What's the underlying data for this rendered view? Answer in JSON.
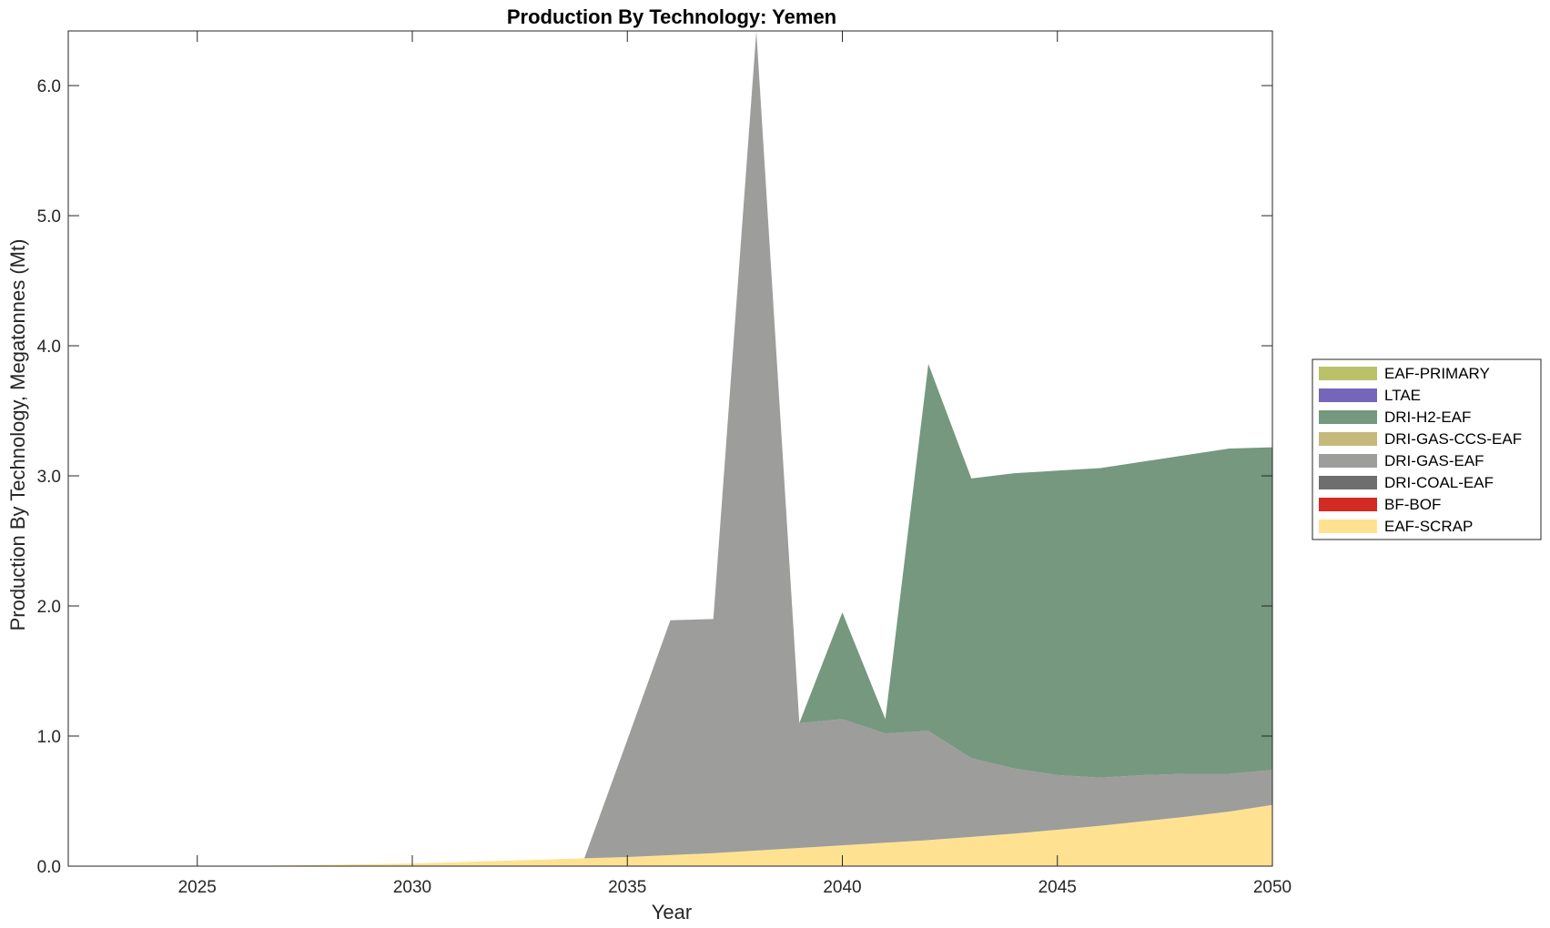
{
  "chart_data": {
    "type": "area",
    "title": "Production By Technology: Yemen",
    "xlabel": "Year",
    "ylabel": "Production By Technology, Megatonnes (Mt)",
    "xlim": [
      2022,
      2050
    ],
    "ylim": [
      0,
      6.42
    ],
    "xticks": [
      2025,
      2030,
      2035,
      2040,
      2045,
      2050
    ],
    "yticks": [
      0.0,
      1.0,
      2.0,
      3.0,
      4.0,
      5.0,
      6.0
    ],
    "ytick_labels": [
      "0.0",
      "1.0",
      "2.0",
      "3.0",
      "4.0",
      "5.0",
      "6.0"
    ],
    "grid": false,
    "legend_position": "right",
    "x": [
      2022,
      2023,
      2024,
      2025,
      2026,
      2027,
      2028,
      2029,
      2030,
      2031,
      2032,
      2033,
      2034,
      2035,
      2036,
      2037,
      2038,
      2039,
      2040,
      2041,
      2042,
      2043,
      2044,
      2045,
      2046,
      2047,
      2048,
      2049,
      2050
    ],
    "series": [
      {
        "name": "EAF-SCRAP",
        "color": "#FFE291",
        "values": [
          0.0,
          0.0,
          0.0,
          0.0,
          0.0,
          0.005,
          0.01,
          0.015,
          0.02,
          0.03,
          0.04,
          0.05,
          0.06,
          0.07,
          0.085,
          0.1,
          0.12,
          0.14,
          0.16,
          0.18,
          0.2,
          0.225,
          0.25,
          0.28,
          0.31,
          0.345,
          0.38,
          0.42,
          0.47
        ]
      },
      {
        "name": "BF-BOF",
        "color": "#D42A24",
        "values": [
          0,
          0,
          0,
          0,
          0,
          0,
          0,
          0,
          0,
          0,
          0,
          0,
          0,
          0,
          0,
          0,
          0,
          0,
          0,
          0,
          0,
          0,
          0,
          0,
          0,
          0,
          0,
          0,
          0
        ]
      },
      {
        "name": "DRI-COAL-EAF",
        "color": "#6E6E6E",
        "values": [
          0,
          0,
          0,
          0,
          0,
          0,
          0,
          0,
          0,
          0,
          0,
          0,
          0,
          0,
          0,
          0,
          0,
          0,
          0,
          0,
          0,
          0,
          0,
          0,
          0,
          0,
          0,
          0,
          0
        ]
      },
      {
        "name": "DRI-GAS-EAF",
        "color": "#9D9D9C",
        "values": [
          0,
          0,
          0,
          0,
          0,
          0,
          0,
          0,
          0,
          0,
          0,
          0,
          0,
          0.9,
          1.805,
          1.8,
          6.3,
          0.96,
          0.97,
          0.84,
          0.84,
          0.605,
          0.5,
          0.42,
          0.37,
          0.355,
          0.33,
          0.29,
          0.27
        ]
      },
      {
        "name": "DRI-GAS-CCS-EAF",
        "color": "#C5B97B",
        "values": [
          0,
          0,
          0,
          0,
          0,
          0,
          0,
          0,
          0,
          0,
          0,
          0,
          0,
          0,
          0,
          0,
          0,
          0,
          0,
          0,
          0,
          0,
          0,
          0,
          0,
          0,
          0,
          0,
          0
        ]
      },
      {
        "name": "DRI-H2-EAF",
        "color": "#76987E",
        "values": [
          0,
          0,
          0,
          0,
          0,
          0,
          0,
          0,
          0,
          0,
          0,
          0,
          0,
          0,
          0,
          0,
          0,
          0,
          0.82,
          0.11,
          2.82,
          2.15,
          2.27,
          2.34,
          2.38,
          2.41,
          2.45,
          2.5,
          2.48
        ]
      },
      {
        "name": "LTAE",
        "color": "#7566B9",
        "values": [
          0,
          0,
          0,
          0,
          0,
          0,
          0,
          0,
          0,
          0,
          0,
          0,
          0,
          0,
          0,
          0,
          0,
          0,
          0,
          0,
          0,
          0,
          0,
          0,
          0,
          0,
          0,
          0,
          0
        ]
      },
      {
        "name": "EAF-PRIMARY",
        "color": "#BBC168",
        "values": [
          0,
          0,
          0,
          0,
          0,
          0,
          0,
          0,
          0,
          0,
          0,
          0,
          0,
          0,
          0,
          0,
          0,
          0,
          0,
          0,
          0,
          0,
          0,
          0,
          0,
          0,
          0,
          0,
          0
        ]
      }
    ],
    "legend_order": [
      "EAF-PRIMARY",
      "LTAE",
      "DRI-H2-EAF",
      "DRI-GAS-CCS-EAF",
      "DRI-GAS-EAF",
      "DRI-COAL-EAF",
      "BF-BOF",
      "EAF-SCRAP"
    ]
  }
}
